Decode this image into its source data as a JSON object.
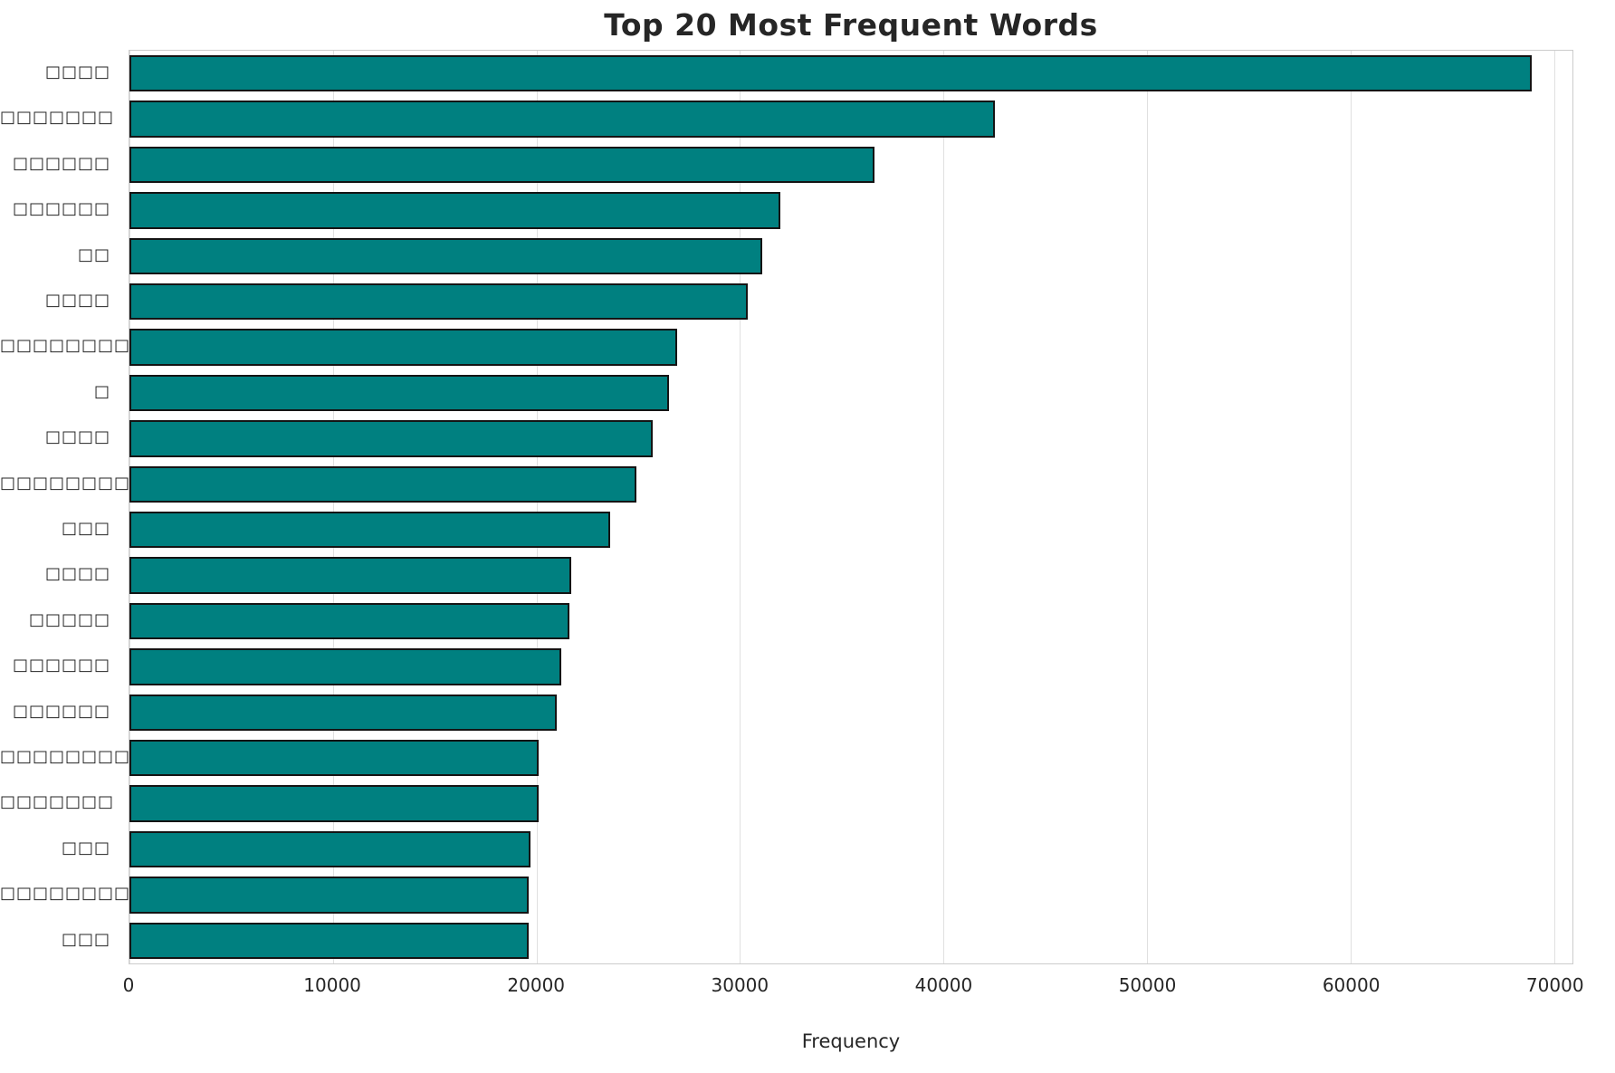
{
  "page": {
    "background": "#ffffff"
  },
  "chart_data": {
    "type": "bar",
    "orientation": "horizontal",
    "title": "Top 20 Most Frequent Words",
    "xlabel": "Frequency",
    "ylabel": "",
    "grid": true,
    "legend": "none",
    "bar_color": "#008080",
    "bar_edge_color": "#141414",
    "xlim": [
      0,
      70900
    ],
    "xticks": [
      0,
      10000,
      20000,
      30000,
      40000,
      50000,
      60000,
      70000
    ],
    "xtick_labels": [
      "0",
      "10000",
      "20000",
      "30000",
      "40000",
      "50000",
      "60000",
      "70000"
    ],
    "categories": [
      "□□□□",
      "□□□□□□□",
      "□□□□□□",
      "□□□□□□",
      "□□",
      "□□□□",
      "□□□□□□□□□",
      "□",
      "□□□□",
      "□□□□□□□□□",
      "□□□",
      "□□□□",
      "□□□□□",
      "□□□□□□",
      "□□□□□□",
      "□□□□□□□□",
      "□□□□□□□",
      "□□□",
      "□□□□□□□□",
      "□□□"
    ],
    "values": [
      68900,
      42500,
      36600,
      32000,
      31100,
      30400,
      26900,
      26500,
      25700,
      24900,
      23600,
      21700,
      21600,
      21200,
      21000,
      20100,
      20100,
      19700,
      19600,
      19600
    ]
  }
}
